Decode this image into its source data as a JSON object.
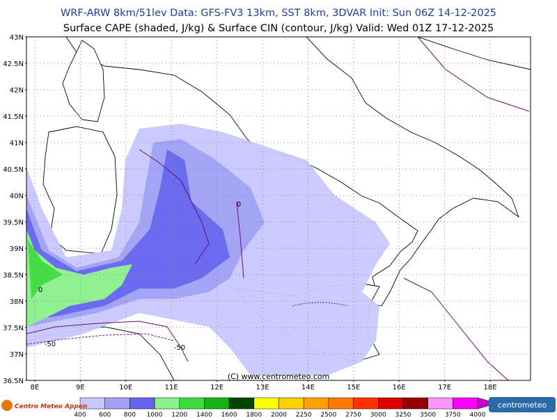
{
  "header": {
    "line1": "WRF-ARW 8km/51lev  Data: GFS-FV3 13km, SST 8km, 3DVAR  Init: Sun 06Z 14-12-2025",
    "line2": "Surface CAPE (shaded, J/kg) & Surface CIN (contour, J/kg)  Valid: Wed 01Z 17-12-2025"
  },
  "map": {
    "lat_labels": [
      "43N",
      "42.5N",
      "42N",
      "41.5N",
      "41N",
      "40.5N",
      "40N",
      "39.5N",
      "39N",
      "38.5N",
      "38N",
      "37.5N",
      "37N",
      "36.5N"
    ],
    "lon_labels": [
      "8E",
      "9E",
      "10E",
      "11E",
      "12E",
      "13E",
      "14E",
      "15E",
      "16E",
      "17E",
      "18E"
    ],
    "contour_labels": [
      "0",
      "0",
      "-50",
      "-50"
    ],
    "credit": "(C) www.centrometeo.com"
  },
  "colorbar": {
    "labels": [
      "400",
      "600",
      "800",
      "1000",
      "1200",
      "1400",
      "1600",
      "1800",
      "2000",
      "2250",
      "2500",
      "2750",
      "3000",
      "3250",
      "3500",
      "3750",
      "4000"
    ],
    "colors": [
      "#c8c8ff",
      "#a0a0f5",
      "#6464f0",
      "#8cf08c",
      "#3cdc3c",
      "#14b414",
      "#004600",
      "#ffff00",
      "#ffd200",
      "#ffa000",
      "#ff7800",
      "#ff3200",
      "#e10000",
      "#960000",
      "#ff96ff",
      "#ff00ff",
      "#c800c8"
    ]
  },
  "logos": {
    "left": "Centro Meteo Appen",
    "right": "centrometeo"
  }
}
